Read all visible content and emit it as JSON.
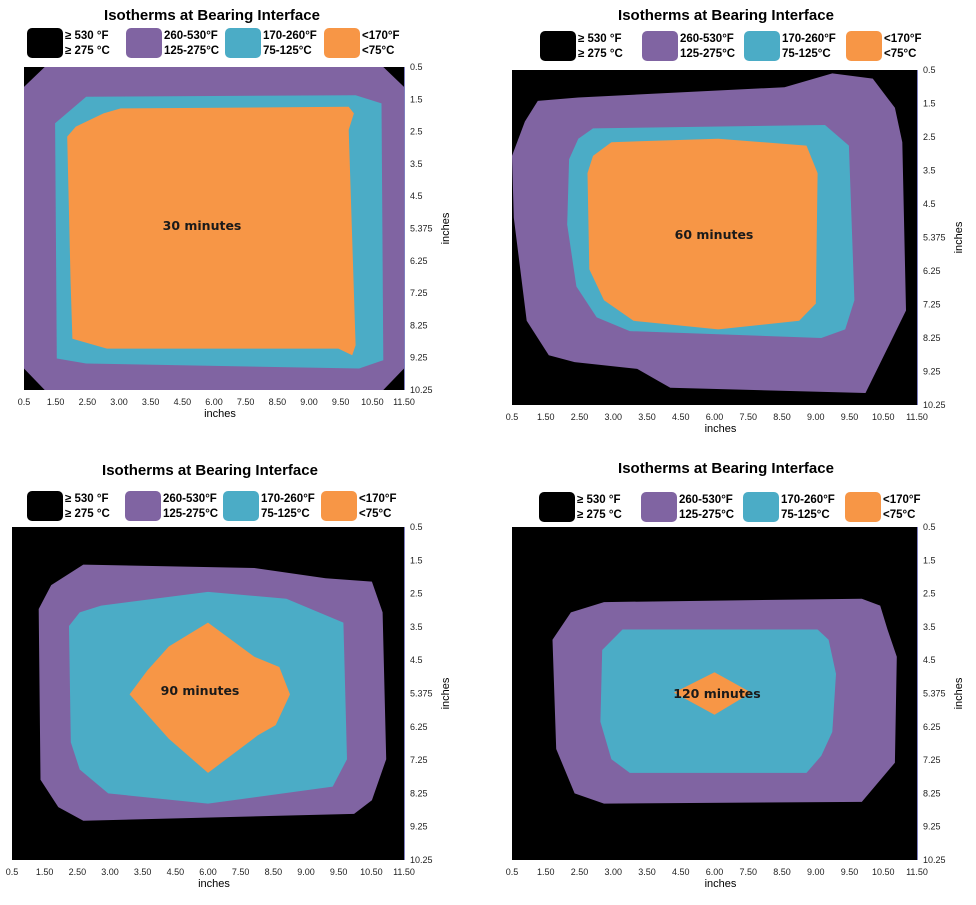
{
  "legend": {
    "colors": {
      "black": "#000000",
      "purple": "#8064a2",
      "teal": "#4bacc6",
      "orange": "#f79646"
    },
    "items": [
      {
        "color": "#000000",
        "line1": "≥ 530 °F",
        "line2": "≥ 275 °C"
      },
      {
        "color": "#8064a2",
        "line1": "260-530°F",
        "line2": "125-275°C"
      },
      {
        "color": "#4bacc6",
        "line1": "170-260°F",
        "line2": "75-125°C"
      },
      {
        "color": "#f79646",
        "line1": "<170°F",
        "line2": "<75°C"
      }
    ]
  },
  "chart_data": [
    {
      "type": "heatmap",
      "title": "Isotherms at Bearing Interface",
      "annotation": "30 minutes",
      "xlabel": "inches",
      "ylabel": "inches",
      "xticks": [
        "0.5",
        "1.50",
        "2.50",
        "3.00",
        "3.50",
        "4.50",
        "6.00",
        "7.50",
        "8.50",
        "9.00",
        "9.50",
        "10.50",
        "11.50"
      ],
      "yticks": [
        "0.5",
        "1.5",
        "2.5",
        "3.5",
        "4.5",
        "5.375",
        "6.25",
        "7.25",
        "8.25",
        "9.25",
        "10.25"
      ],
      "zones": {
        "purple": [
          [
            1.1,
            0.5
          ],
          [
            10.9,
            0.5
          ],
          [
            11.5,
            1.1
          ],
          [
            11.5,
            9.6
          ],
          [
            10.9,
            10.25
          ],
          [
            1.1,
            10.25
          ],
          [
            0.5,
            9.6
          ],
          [
            0.5,
            1.1
          ]
        ],
        "teal": [
          [
            2.3,
            1.4
          ],
          [
            10.1,
            1.35
          ],
          [
            10.85,
            1.6
          ],
          [
            10.9,
            9.35
          ],
          [
            10.2,
            9.6
          ],
          [
            2.3,
            9.45
          ],
          [
            1.45,
            9.3
          ],
          [
            1.4,
            2.2
          ]
        ],
        "orange": [
          [
            2.8,
            1.9
          ],
          [
            3.3,
            1.75
          ],
          [
            9.9,
            1.7
          ],
          [
            10.05,
            1.9
          ],
          [
            9.9,
            2.4
          ],
          [
            10.1,
            8.9
          ],
          [
            10.0,
            9.2
          ],
          [
            9.6,
            9.0
          ],
          [
            2.9,
            9.0
          ],
          [
            1.9,
            8.7
          ],
          [
            1.85,
            7.0
          ],
          [
            1.75,
            2.6
          ],
          [
            2.0,
            2.3
          ]
        ]
      }
    },
    {
      "type": "heatmap",
      "title": "Isotherms at Bearing Interface",
      "annotation": "60 minutes",
      "xlabel": "inches",
      "ylabel": "inches",
      "xticks": [
        "0.5",
        "1.50",
        "2.50",
        "3.00",
        "3.50",
        "4.50",
        "6.00",
        "7.50",
        "8.50",
        "9.00",
        "9.50",
        "10.50",
        "11.50"
      ],
      "yticks": [
        "0.5",
        "1.5",
        "2.5",
        "3.5",
        "4.5",
        "5.375",
        "6.25",
        "7.25",
        "8.25",
        "9.25",
        "10.25"
      ],
      "zones": {
        "purple": [
          [
            1.2,
            1.4
          ],
          [
            2.3,
            1.3
          ],
          [
            7.9,
            1.0
          ],
          [
            9.2,
            0.6
          ],
          [
            10.3,
            0.75
          ],
          [
            10.9,
            1.6
          ],
          [
            11.1,
            2.6
          ],
          [
            11.2,
            7.5
          ],
          [
            10.7,
            8.6
          ],
          [
            10.1,
            9.9
          ],
          [
            4.8,
            9.75
          ],
          [
            3.9,
            9.2
          ],
          [
            2.2,
            9.0
          ],
          [
            1.5,
            8.8
          ],
          [
            0.9,
            7.8
          ],
          [
            0.55,
            4.8
          ],
          [
            0.5,
            3.0
          ],
          [
            0.85,
            2.0
          ]
        ],
        "teal": [
          [
            2.7,
            2.2
          ],
          [
            9.0,
            2.1
          ],
          [
            9.65,
            2.7
          ],
          [
            9.8,
            7.2
          ],
          [
            9.55,
            8.05
          ],
          [
            8.9,
            8.3
          ],
          [
            3.7,
            8.1
          ],
          [
            2.8,
            7.7
          ],
          [
            2.25,
            6.8
          ],
          [
            2.0,
            5.0
          ],
          [
            2.05,
            3.1
          ],
          [
            2.3,
            2.5
          ]
        ],
        "orange": [
          [
            3.2,
            2.6
          ],
          [
            6.1,
            2.5
          ],
          [
            8.5,
            2.7
          ],
          [
            8.8,
            3.5
          ],
          [
            8.75,
            7.3
          ],
          [
            8.3,
            7.8
          ],
          [
            6.1,
            8.05
          ],
          [
            3.8,
            7.8
          ],
          [
            3.0,
            7.2
          ],
          [
            2.6,
            6.3
          ],
          [
            2.55,
            3.5
          ],
          [
            2.7,
            3.0
          ]
        ]
      }
    },
    {
      "type": "heatmap",
      "title": "Isotherms at Bearing Interface",
      "annotation": "90 minutes",
      "xlabel": "inches",
      "ylabel": "inches",
      "xticks": [
        "0.5",
        "1.50",
        "2.50",
        "3.00",
        "3.50",
        "4.50",
        "6.00",
        "7.50",
        "8.50",
        "9.00",
        "9.50",
        "10.50",
        "11.50"
      ],
      "yticks": [
        "0.5",
        "1.5",
        "2.5",
        "3.5",
        "4.5",
        "5.375",
        "6.25",
        "7.25",
        "8.25",
        "9.25",
        "10.25"
      ],
      "zones": {
        "purple": [
          [
            2.5,
            1.6
          ],
          [
            7.3,
            1.7
          ],
          [
            9.3,
            2.0
          ],
          [
            10.6,
            2.1
          ],
          [
            10.9,
            3.0
          ],
          [
            11.0,
            7.3
          ],
          [
            10.6,
            8.5
          ],
          [
            10.1,
            8.9
          ],
          [
            2.5,
            9.1
          ],
          [
            1.8,
            8.7
          ],
          [
            1.3,
            7.9
          ],
          [
            1.25,
            2.9
          ],
          [
            1.6,
            2.2
          ]
        ],
        "teal": [
          [
            3.0,
            2.8
          ],
          [
            6.0,
            2.4
          ],
          [
            8.2,
            2.6
          ],
          [
            9.8,
            3.3
          ],
          [
            9.9,
            7.3
          ],
          [
            9.5,
            8.1
          ],
          [
            6.0,
            8.6
          ],
          [
            3.2,
            8.3
          ],
          [
            2.4,
            7.6
          ],
          [
            2.15,
            6.8
          ],
          [
            2.1,
            3.4
          ],
          [
            2.4,
            3.0
          ]
        ],
        "orange": [
          [
            6.0,
            3.3
          ],
          [
            7.3,
            4.3
          ],
          [
            8.0,
            4.6
          ],
          [
            8.3,
            5.4
          ],
          [
            7.9,
            6.3
          ],
          [
            7.4,
            6.6
          ],
          [
            6.0,
            7.7
          ],
          [
            4.9,
            6.7
          ],
          [
            4.3,
            6.0
          ],
          [
            3.8,
            5.4
          ],
          [
            4.3,
            4.7
          ],
          [
            4.9,
            4.0
          ]
        ]
      }
    },
    {
      "type": "heatmap",
      "title": "Isotherms at Bearing Interface",
      "annotation": "120 minutes",
      "xlabel": "inches",
      "ylabel": "inches",
      "xticks": [
        "0.5",
        "1.50",
        "2.50",
        "3.00",
        "3.50",
        "4.50",
        "6.00",
        "7.50",
        "8.50",
        "9.00",
        "9.50",
        "10.50",
        "11.50"
      ],
      "yticks": [
        "0.5",
        "1.5",
        "2.5",
        "3.5",
        "4.5",
        "5.375",
        "6.25",
        "7.25",
        "8.25",
        "9.25",
        "10.25"
      ],
      "zones": {
        "purple": [
          [
            3.0,
            2.7
          ],
          [
            10.0,
            2.6
          ],
          [
            10.5,
            2.8
          ],
          [
            10.7,
            3.5
          ],
          [
            10.95,
            4.3
          ],
          [
            10.9,
            7.4
          ],
          [
            10.0,
            8.55
          ],
          [
            3.0,
            8.6
          ],
          [
            2.2,
            8.3
          ],
          [
            1.7,
            7.0
          ],
          [
            1.6,
            3.8
          ],
          [
            2.1,
            3.0
          ]
        ],
        "teal": [
          [
            3.5,
            3.5
          ],
          [
            8.8,
            3.5
          ],
          [
            9.1,
            3.8
          ],
          [
            9.3,
            4.8
          ],
          [
            9.2,
            6.5
          ],
          [
            8.9,
            7.2
          ],
          [
            8.5,
            7.7
          ],
          [
            3.7,
            7.7
          ],
          [
            3.2,
            7.3
          ],
          [
            2.9,
            6.2
          ],
          [
            2.95,
            4.1
          ]
        ],
        "orange": [
          [
            6.0,
            4.75
          ],
          [
            7.0,
            5.35
          ],
          [
            6.0,
            6.0
          ],
          [
            4.9,
            5.35
          ]
        ]
      }
    }
  ]
}
